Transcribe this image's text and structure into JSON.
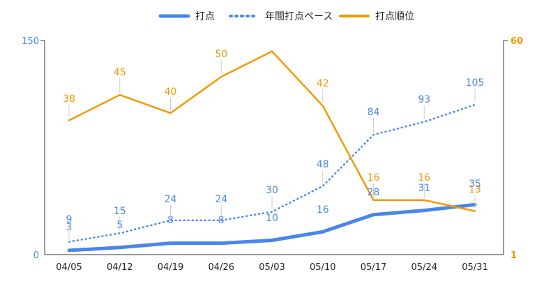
{
  "chart_data": {
    "type": "line",
    "categories": [
      "04/05",
      "04/12",
      "04/19",
      "04/26",
      "05/03",
      "05/10",
      "05/17",
      "05/24",
      "05/31"
    ],
    "series": [
      {
        "name": "打点",
        "axis": "left",
        "style": "solid-thick",
        "color": "#4a86e8",
        "values": [
          3,
          5,
          8,
          8,
          10,
          16,
          28,
          31,
          35
        ],
        "labels": [
          "3",
          "5",
          "8",
          "8",
          "10",
          "16",
          "28",
          "31",
          "35"
        ]
      },
      {
        "name": "年間打点ペース",
        "axis": "left",
        "style": "dotted",
        "color": "#4a86e8",
        "values": [
          9,
          15,
          24,
          24,
          30,
          48,
          84,
          93,
          105
        ],
        "labels": [
          "9",
          "15",
          "24",
          "24",
          "30",
          "48",
          "84",
          "93",
          "105"
        ]
      },
      {
        "name": "打点順位",
        "axis": "right",
        "style": "solid",
        "color": "#f29900",
        "values": [
          38,
          45,
          40,
          50,
          57,
          42,
          16,
          16,
          13
        ],
        "labels": [
          "38",
          "45",
          "40",
          "50",
          "",
          "42",
          "16",
          "16",
          "13"
        ]
      }
    ],
    "left_axis": {
      "min": 0,
      "max": 150,
      "tick_labels": [
        "0",
        "150"
      ]
    },
    "right_axis": {
      "min": 1,
      "max": 60,
      "tick_labels": [
        "1",
        "60"
      ]
    },
    "legend_position": "top-center",
    "grid": false
  }
}
